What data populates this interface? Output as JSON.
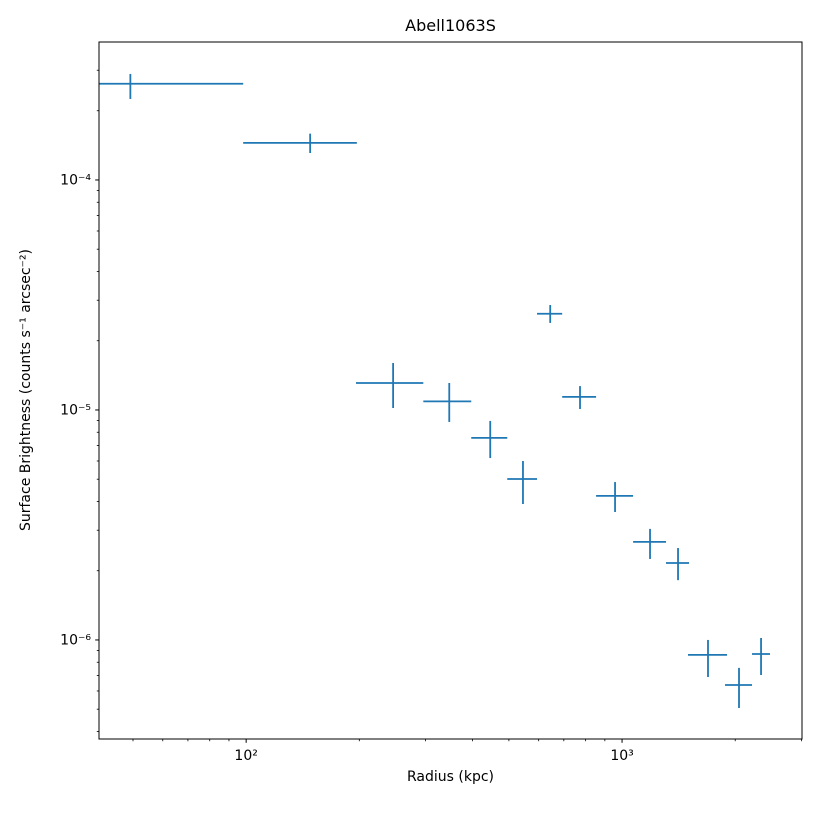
{
  "chart_data": {
    "type": "scatter",
    "title": "Abell1063S",
    "xlabel": "Radius (kpc)",
    "ylabel": "Surface Brightness (counts s⁻¹ arcsec⁻²)",
    "xscale": "log",
    "yscale": "log",
    "xlim": [
      40.6,
      3011
    ],
    "ylim": [
      3.71e-07,
      0.000398
    ],
    "grid": false,
    "legend": null,
    "marker_color": "#1f77b4",
    "axis_color": "#000000",
    "background_color": "#ffffff",
    "x_ticks": [
      {
        "value": 100,
        "label": "10²"
      },
      {
        "value": 1000,
        "label": "10³"
      }
    ],
    "y_ticks": [
      {
        "value": 0.0001,
        "label": "10⁻⁴"
      },
      {
        "value": 1e-05,
        "label": "10⁻⁵"
      },
      {
        "value": 1e-06,
        "label": "10⁻⁶"
      }
    ],
    "series": [
      {
        "name": "surface-brightness-profile",
        "style": "errorbar-cross-no-caps",
        "points": [
          {
            "r": 49.2,
            "r_lo": 40.0,
            "r_hi": 98.2,
            "sb": 0.000262,
            "sb_lo": 0.000225,
            "sb_hi": 0.000289
          },
          {
            "r": 148,
            "r_lo": 98.2,
            "r_hi": 197,
            "sb": 0.000145,
            "sb_lo": 0.000131,
            "sb_hi": 0.000159
          },
          {
            "r": 246,
            "r_lo": 196,
            "r_hi": 296,
            "sb": 1.31e-05,
            "sb_lo": 1.02e-05,
            "sb_hi": 1.6e-05
          },
          {
            "r": 347,
            "r_lo": 296,
            "r_hi": 397,
            "sb": 1.09e-05,
            "sb_lo": 8.87e-06,
            "sb_hi": 1.31e-05
          },
          {
            "r": 446,
            "r_lo": 397,
            "r_hi": 495,
            "sb": 7.56e-06,
            "sb_lo": 6.18e-06,
            "sb_hi": 8.96e-06
          },
          {
            "r": 545,
            "r_lo": 495,
            "r_hi": 594,
            "sb": 5.01e-06,
            "sb_lo": 3.9e-06,
            "sb_hi": 6e-06
          },
          {
            "r": 644,
            "r_lo": 594,
            "r_hi": 693,
            "sb": 2.62e-05,
            "sb_lo": 2.39e-05,
            "sb_hi": 2.86e-05
          },
          {
            "r": 773,
            "r_lo": 693,
            "r_hi": 853,
            "sb": 1.14e-05,
            "sb_lo": 1.01e-05,
            "sb_hi": 1.27e-05
          },
          {
            "r": 958,
            "r_lo": 853,
            "r_hi": 1070,
            "sb": 4.23e-06,
            "sb_lo": 3.6e-06,
            "sb_hi": 4.86e-06
          },
          {
            "r": 1187,
            "r_lo": 1070,
            "r_hi": 1309,
            "sb": 2.67e-06,
            "sb_lo": 2.25e-06,
            "sb_hi": 3.04e-06
          },
          {
            "r": 1409,
            "r_lo": 1309,
            "r_hi": 1507,
            "sb": 2.16e-06,
            "sb_lo": 1.82e-06,
            "sb_hi": 2.51e-06
          },
          {
            "r": 1693,
            "r_lo": 1498,
            "r_hi": 1902,
            "sb": 8.61e-07,
            "sb_lo": 6.9e-07,
            "sb_hi": 1e-06
          },
          {
            "r": 2047,
            "r_lo": 1879,
            "r_hi": 2217,
            "sb": 6.37e-07,
            "sb_lo": 5.06e-07,
            "sb_hi": 7.56e-07
          },
          {
            "r": 2343,
            "r_lo": 2217,
            "r_hi": 2475,
            "sb": 8.69e-07,
            "sb_lo": 7.04e-07,
            "sb_hi": 1.02e-06
          }
        ]
      }
    ]
  }
}
